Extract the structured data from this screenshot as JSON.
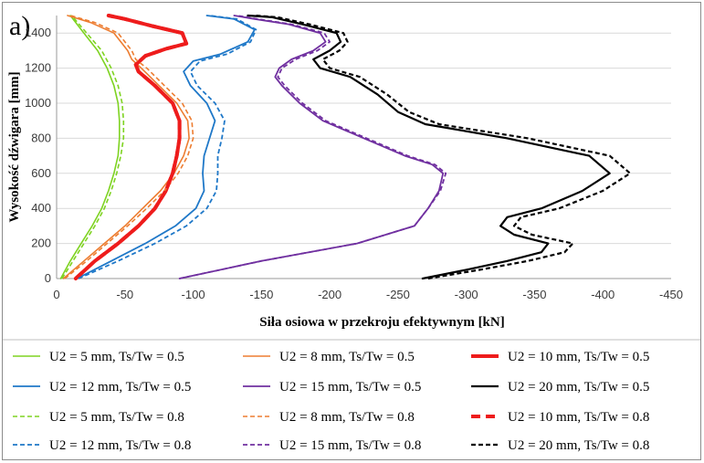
{
  "panel_label": "a)",
  "chart_data": {
    "type": "line",
    "title": "",
    "xlabel": "Siła osiowa w przekroju efektywnym [kN]",
    "ylabel": "Wysokość dźwigara [mm]",
    "xlim": [
      0,
      -450
    ],
    "ylim": [
      0,
      1500
    ],
    "xticks": [
      0,
      -50,
      -100,
      -150,
      -200,
      -250,
      -300,
      -350,
      -400,
      -450
    ],
    "yticks": [
      0,
      200,
      400,
      600,
      800,
      1000,
      1200,
      1400
    ],
    "grid": "horizontal",
    "legend_position": "bottom",
    "series": [
      {
        "name": "U2 = 5 mm, Ts/Tw = 0.5",
        "color": "#7ed321",
        "dash": "solid",
        "width": 1.6,
        "points": [
          [
            -3,
            0
          ],
          [
            -10,
            100
          ],
          [
            -18,
            200
          ],
          [
            -26,
            300
          ],
          [
            -33,
            400
          ],
          [
            -38,
            500
          ],
          [
            -42,
            600
          ],
          [
            -45,
            700
          ],
          [
            -46,
            800
          ],
          [
            -46,
            900
          ],
          [
            -45,
            1000
          ],
          [
            -42,
            1100
          ],
          [
            -37,
            1200
          ],
          [
            -30,
            1300
          ],
          [
            -20,
            1400
          ],
          [
            -10,
            1500
          ]
        ]
      },
      {
        "name": "U2 = 8 mm, Ts/Tw = 0.5",
        "color": "#ed7d31",
        "dash": "solid",
        "width": 1.6,
        "points": [
          [
            -5,
            0
          ],
          [
            -20,
            100
          ],
          [
            -35,
            200
          ],
          [
            -50,
            300
          ],
          [
            -63,
            400
          ],
          [
            -76,
            500
          ],
          [
            -86,
            600
          ],
          [
            -93,
            700
          ],
          [
            -97,
            800
          ],
          [
            -96,
            900
          ],
          [
            -88,
            1000
          ],
          [
            -75,
            1100
          ],
          [
            -62,
            1200
          ],
          [
            -55,
            1250
          ],
          [
            -52,
            1300
          ],
          [
            -42,
            1400
          ],
          [
            -25,
            1460
          ],
          [
            -8,
            1500
          ]
        ]
      },
      {
        "name": "U2 = 10 mm, Ts/Tw = 0.5",
        "color": "#ee1c1c",
        "dash": "solid",
        "width": 4,
        "points": [
          [
            -14,
            0
          ],
          [
            -28,
            100
          ],
          [
            -45,
            200
          ],
          [
            -60,
            300
          ],
          [
            -72,
            400
          ],
          [
            -80,
            500
          ],
          [
            -85,
            600
          ],
          [
            -88,
            700
          ],
          [
            -90,
            800
          ],
          [
            -90,
            900
          ],
          [
            -85,
            1000
          ],
          [
            -72,
            1100
          ],
          [
            -60,
            1180
          ],
          [
            -58,
            1220
          ],
          [
            -65,
            1270
          ],
          [
            -80,
            1310
          ],
          [
            -95,
            1340
          ],
          [
            -92,
            1400
          ],
          [
            -70,
            1440
          ],
          [
            -50,
            1480
          ],
          [
            -38,
            1500
          ]
        ]
      },
      {
        "name": "U2 = 12 mm, Ts/Tw = 0.5",
        "color": "#1f78c8",
        "dash": "solid",
        "width": 1.8,
        "points": [
          [
            -15,
            0
          ],
          [
            -40,
            100
          ],
          [
            -65,
            200
          ],
          [
            -87,
            300
          ],
          [
            -102,
            400
          ],
          [
            -108,
            500
          ],
          [
            -107,
            600
          ],
          [
            -108,
            700
          ],
          [
            -112,
            800
          ],
          [
            -116,
            900
          ],
          [
            -110,
            1000
          ],
          [
            -98,
            1100
          ],
          [
            -93,
            1180
          ],
          [
            -100,
            1240
          ],
          [
            -120,
            1280
          ],
          [
            -140,
            1350
          ],
          [
            -145,
            1420
          ],
          [
            -130,
            1480
          ],
          [
            -110,
            1500
          ]
        ]
      },
      {
        "name": "U2 = 15 mm, Ts/Tw = 0.5",
        "color": "#7030a0",
        "dash": "solid",
        "width": 1.8,
        "points": [
          [
            -90,
            0
          ],
          [
            -150,
            100
          ],
          [
            -220,
            200
          ],
          [
            -262,
            300
          ],
          [
            -272,
            400
          ],
          [
            -280,
            500
          ],
          [
            -283,
            600
          ],
          [
            -275,
            650
          ],
          [
            -255,
            700
          ],
          [
            -225,
            800
          ],
          [
            -195,
            900
          ],
          [
            -178,
            1000
          ],
          [
            -165,
            1100
          ],
          [
            -160,
            1150
          ],
          [
            -163,
            1200
          ],
          [
            -172,
            1250
          ],
          [
            -188,
            1300
          ],
          [
            -197,
            1350
          ],
          [
            -193,
            1400
          ],
          [
            -170,
            1450
          ],
          [
            -145,
            1480
          ],
          [
            -130,
            1500
          ]
        ]
      },
      {
        "name": "U2 = 20 mm, Ts/Tw = 0.5",
        "color": "#000000",
        "dash": "solid",
        "width": 2.2,
        "points": [
          [
            -268,
            0
          ],
          [
            -300,
            50
          ],
          [
            -330,
            100
          ],
          [
            -355,
            150
          ],
          [
            -360,
            200
          ],
          [
            -335,
            250
          ],
          [
            -325,
            300
          ],
          [
            -330,
            350
          ],
          [
            -355,
            400
          ],
          [
            -385,
            500
          ],
          [
            -405,
            600
          ],
          [
            -390,
            700
          ],
          [
            -330,
            800
          ],
          [
            -270,
            880
          ],
          [
            -250,
            950
          ],
          [
            -235,
            1050
          ],
          [
            -215,
            1150
          ],
          [
            -193,
            1200
          ],
          [
            -188,
            1250
          ],
          [
            -200,
            1300
          ],
          [
            -208,
            1350
          ],
          [
            -205,
            1400
          ],
          [
            -180,
            1450
          ],
          [
            -158,
            1490
          ],
          [
            -140,
            1500
          ]
        ]
      },
      {
        "name": "U2 = 5 mm, Ts/Tw = 0.8",
        "color": "#7ed321",
        "dash": "dashed",
        "width": 1.6,
        "points": [
          [
            -4,
            0
          ],
          [
            -12,
            100
          ],
          [
            -20,
            200
          ],
          [
            -28,
            300
          ],
          [
            -35,
            400
          ],
          [
            -40,
            500
          ],
          [
            -44,
            600
          ],
          [
            -47,
            700
          ],
          [
            -49,
            800
          ],
          [
            -49,
            900
          ],
          [
            -48,
            1000
          ],
          [
            -45,
            1100
          ],
          [
            -40,
            1200
          ],
          [
            -33,
            1300
          ],
          [
            -22,
            1400
          ],
          [
            -11,
            1500
          ]
        ]
      },
      {
        "name": "U2 = 8 mm, Ts/Tw = 0.8",
        "color": "#ed7d31",
        "dash": "dashed",
        "width": 1.6,
        "points": [
          [
            -6,
            0
          ],
          [
            -22,
            100
          ],
          [
            -37,
            200
          ],
          [
            -52,
            300
          ],
          [
            -66,
            400
          ],
          [
            -79,
            500
          ],
          [
            -89,
            600
          ],
          [
            -96,
            700
          ],
          [
            -100,
            800
          ],
          [
            -99,
            900
          ],
          [
            -92,
            1000
          ],
          [
            -79,
            1100
          ],
          [
            -66,
            1200
          ],
          [
            -58,
            1250
          ],
          [
            -55,
            1300
          ],
          [
            -45,
            1400
          ],
          [
            -28,
            1460
          ],
          [
            -10,
            1500
          ]
        ]
      },
      {
        "name": "U2 = 10 mm, Ts/Tw = 0.8",
        "color": "#ee1c1c",
        "dash": "dashed",
        "width": 4,
        "points": [
          [
            -14,
            0
          ],
          [
            -28,
            100
          ],
          [
            -45,
            200
          ],
          [
            -60,
            300
          ],
          [
            -72,
            400
          ],
          [
            -80,
            500
          ],
          [
            -85,
            600
          ],
          [
            -88,
            700
          ],
          [
            -90,
            800
          ],
          [
            -90,
            900
          ],
          [
            -85,
            1000
          ],
          [
            -72,
            1100
          ],
          [
            -60,
            1180
          ],
          [
            -58,
            1220
          ],
          [
            -65,
            1270
          ],
          [
            -80,
            1310
          ],
          [
            -95,
            1340
          ],
          [
            -92,
            1400
          ],
          [
            -70,
            1440
          ],
          [
            -50,
            1480
          ],
          [
            -38,
            1500
          ]
        ]
      },
      {
        "name": "U2 = 12 mm, Ts/Tw = 0.8",
        "color": "#1f78c8",
        "dash": "dashed",
        "width": 1.8,
        "points": [
          [
            -16,
            0
          ],
          [
            -45,
            100
          ],
          [
            -72,
            200
          ],
          [
            -95,
            300
          ],
          [
            -110,
            400
          ],
          [
            -117,
            500
          ],
          [
            -118,
            600
          ],
          [
            -118,
            700
          ],
          [
            -121,
            800
          ],
          [
            -123,
            900
          ],
          [
            -116,
            1000
          ],
          [
            -103,
            1100
          ],
          [
            -98,
            1180
          ],
          [
            -105,
            1240
          ],
          [
            -125,
            1280
          ],
          [
            -142,
            1350
          ],
          [
            -146,
            1420
          ],
          [
            -132,
            1480
          ],
          [
            -112,
            1500
          ]
        ]
      },
      {
        "name": "U2 = 15 mm, Ts/Tw = 0.8",
        "color": "#7030a0",
        "dash": "dashed",
        "width": 1.8,
        "points": [
          [
            -90,
            0
          ],
          [
            -150,
            100
          ],
          [
            -220,
            200
          ],
          [
            -262,
            300
          ],
          [
            -272,
            400
          ],
          [
            -281,
            500
          ],
          [
            -285,
            600
          ],
          [
            -277,
            650
          ],
          [
            -257,
            700
          ],
          [
            -227,
            800
          ],
          [
            -197,
            900
          ],
          [
            -180,
            1000
          ],
          [
            -167,
            1100
          ],
          [
            -162,
            1150
          ],
          [
            -165,
            1200
          ],
          [
            -175,
            1250
          ],
          [
            -191,
            1300
          ],
          [
            -200,
            1350
          ],
          [
            -196,
            1400
          ],
          [
            -172,
            1450
          ],
          [
            -147,
            1480
          ],
          [
            -132,
            1500
          ]
        ]
      },
      {
        "name": "U2 = 20 mm, Ts/Tw = 0.8",
        "color": "#000000",
        "dash": "dashed",
        "width": 2.2,
        "points": [
          [
            -272,
            0
          ],
          [
            -310,
            50
          ],
          [
            -345,
            100
          ],
          [
            -372,
            150
          ],
          [
            -378,
            200
          ],
          [
            -348,
            250
          ],
          [
            -335,
            300
          ],
          [
            -340,
            350
          ],
          [
            -368,
            400
          ],
          [
            -400,
            500
          ],
          [
            -420,
            600
          ],
          [
            -405,
            700
          ],
          [
            -345,
            800
          ],
          [
            -280,
            880
          ],
          [
            -258,
            950
          ],
          [
            -242,
            1050
          ],
          [
            -222,
            1150
          ],
          [
            -200,
            1200
          ],
          [
            -195,
            1250
          ],
          [
            -207,
            1300
          ],
          [
            -213,
            1350
          ],
          [
            -210,
            1400
          ],
          [
            -185,
            1450
          ],
          [
            -162,
            1490
          ],
          [
            -145,
            1500
          ]
        ]
      }
    ]
  }
}
